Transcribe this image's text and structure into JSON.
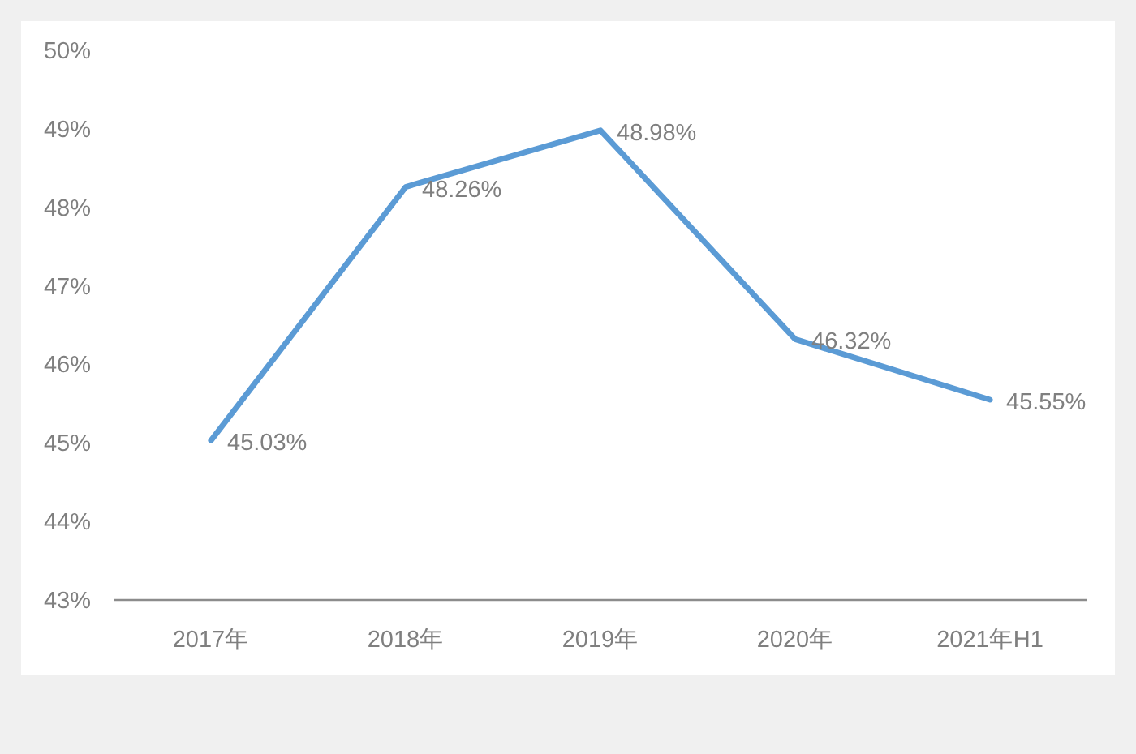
{
  "chart_data": {
    "type": "line",
    "categories": [
      "2017年",
      "2018年",
      "2019年",
      "2020年",
      "2021年H1"
    ],
    "values": [
      45.03,
      48.26,
      48.98,
      46.32,
      45.55
    ],
    "color": "#5b9bd5",
    "ylim": [
      43,
      50
    ],
    "yticks": [
      {
        "value": 43,
        "label": "43%"
      },
      {
        "value": 44,
        "label": "44%"
      },
      {
        "value": 45,
        "label": "45%"
      },
      {
        "value": 46,
        "label": "46%"
      },
      {
        "value": 47,
        "label": "47%"
      },
      {
        "value": 48,
        "label": "48%"
      },
      {
        "value": 49,
        "label": "49%"
      },
      {
        "value": 50,
        "label": "50%"
      }
    ],
    "value_labels": [
      "45.03%",
      "48.26%",
      "48.98%",
      "46.32%",
      "45.55%"
    ]
  }
}
